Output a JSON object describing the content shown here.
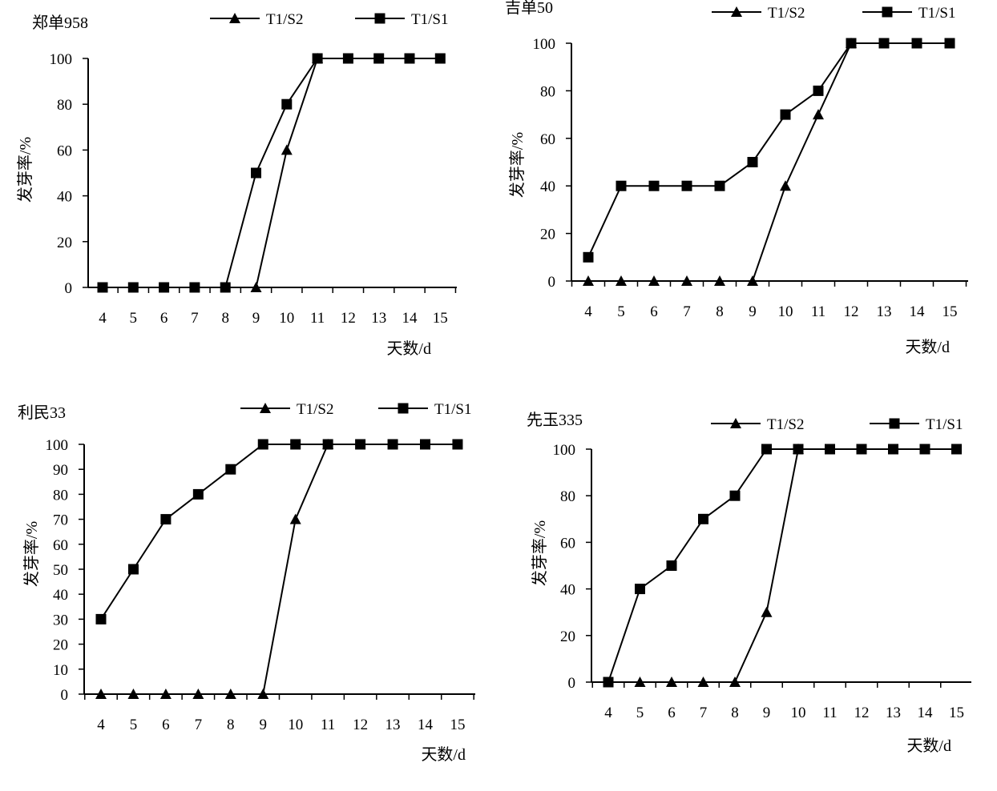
{
  "chart_data": [
    {
      "type": "line",
      "title": "郑单958",
      "xlabel": "天数/d",
      "ylabel": "发芽率/%",
      "categories": [
        "4",
        "5",
        "6",
        "7",
        "8",
        "9",
        "10",
        "11",
        "12",
        "13",
        "14",
        "15"
      ],
      "ylim": [
        0,
        100
      ],
      "yticks": [
        "0",
        "20",
        "40",
        "60",
        "80",
        "100"
      ],
      "legend_position": "top",
      "series": [
        {
          "name": "T1/S2",
          "marker": "triangle",
          "values": [
            null,
            null,
            null,
            null,
            null,
            0,
            60,
            100,
            null,
            null,
            null,
            null
          ]
        },
        {
          "name": "T1/S1",
          "marker": "square",
          "values": [
            0,
            0,
            0,
            0,
            0,
            50,
            80,
            100,
            100,
            100,
            100,
            100
          ]
        }
      ]
    },
    {
      "type": "line",
      "title": "吉单50",
      "xlabel": "天数/d",
      "ylabel": "发芽率/%",
      "categories": [
        "4",
        "5",
        "6",
        "7",
        "8",
        "9",
        "10",
        "11",
        "12",
        "13",
        "14",
        "15"
      ],
      "ylim": [
        0,
        100
      ],
      "yticks": [
        "0",
        "20",
        "40",
        "60",
        "80",
        "100"
      ],
      "legend_position": "top",
      "series": [
        {
          "name": "T1/S2",
          "marker": "triangle",
          "values": [
            0,
            0,
            0,
            0,
            0,
            0,
            40,
            70,
            100,
            null,
            null,
            null
          ]
        },
        {
          "name": "T1/S1",
          "marker": "square",
          "values": [
            10,
            40,
            40,
            40,
            40,
            50,
            70,
            80,
            100,
            100,
            100,
            100
          ]
        }
      ]
    },
    {
      "type": "line",
      "title": "利民33",
      "xlabel": "天数/d",
      "ylabel": "发芽率/%",
      "categories": [
        "4",
        "5",
        "6",
        "7",
        "8",
        "9",
        "10",
        "11",
        "12",
        "13",
        "14",
        "15"
      ],
      "ylim": [
        0,
        100
      ],
      "yticks": [
        "0",
        "10",
        "20",
        "30",
        "40",
        "50",
        "60",
        "70",
        "80",
        "90",
        "100"
      ],
      "legend_position": "top",
      "series": [
        {
          "name": "T1/S2",
          "marker": "triangle",
          "values": [
            0,
            0,
            0,
            0,
            0,
            0,
            70,
            100,
            null,
            null,
            null,
            null
          ]
        },
        {
          "name": "T1/S1",
          "marker": "square",
          "values": [
            30,
            50,
            70,
            80,
            90,
            100,
            100,
            100,
            100,
            100,
            100,
            100
          ]
        }
      ]
    },
    {
      "type": "line",
      "title": "先玉335",
      "xlabel": "天数/d",
      "ylabel": "发芽率/%",
      "categories": [
        "4",
        "5",
        "6",
        "7",
        "8",
        "9",
        "10",
        "11",
        "12",
        "13",
        "14",
        "15"
      ],
      "ylim": [
        0,
        100
      ],
      "yticks": [
        "0",
        "20",
        "40",
        "60",
        "80",
        "100"
      ],
      "legend_position": "top",
      "series": [
        {
          "name": "T1/S2",
          "marker": "triangle",
          "values": [
            null,
            0,
            0,
            0,
            0,
            30,
            100,
            null,
            null,
            null,
            null,
            null
          ]
        },
        {
          "name": "T1/S1",
          "marker": "square",
          "values": [
            0,
            40,
            50,
            70,
            80,
            100,
            100,
            100,
            100,
            100,
            100,
            100
          ]
        }
      ]
    }
  ]
}
